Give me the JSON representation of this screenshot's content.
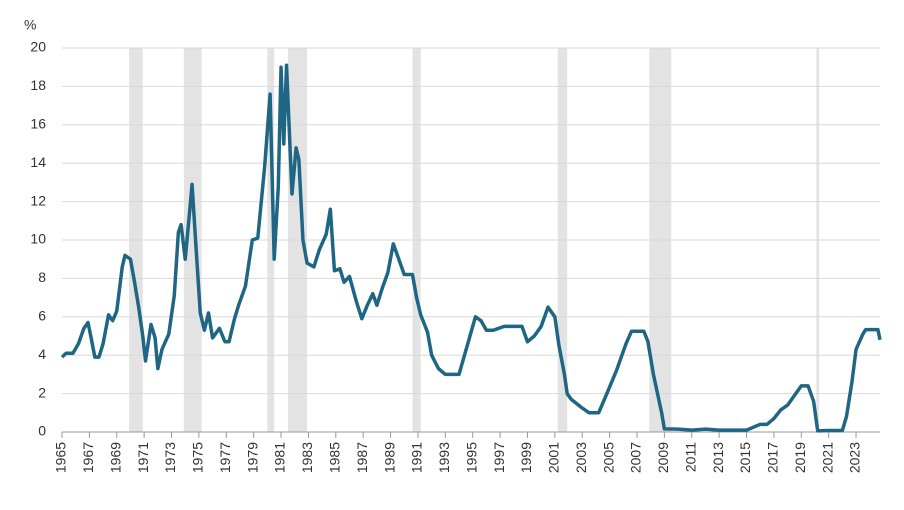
{
  "chart_data": {
    "type": "line",
    "y_label": "%",
    "color": "#1f6685",
    "band_color": "#e3e3e3",
    "grid": true,
    "xlim": [
      1965,
      2024.75
    ],
    "ylim": [
      0,
      20
    ],
    "yticks": [
      0,
      2,
      4,
      6,
      8,
      10,
      12,
      14,
      16,
      18,
      20
    ],
    "xticks": [
      1965,
      1967,
      1969,
      1971,
      1973,
      1975,
      1977,
      1979,
      1981,
      1983,
      1985,
      1987,
      1989,
      1991,
      1993,
      1995,
      1997,
      1999,
      2001,
      2003,
      2005,
      2007,
      2009,
      2011,
      2013,
      2015,
      2017,
      2019,
      2021,
      2023
    ],
    "recessions": [
      [
        1969.9,
        1970.9
      ],
      [
        1973.9,
        1975.2
      ],
      [
        1980.0,
        1980.5
      ],
      [
        1981.5,
        1982.9
      ],
      [
        1990.6,
        1991.2
      ],
      [
        2001.2,
        2001.9
      ],
      [
        2007.9,
        2009.5
      ],
      [
        2020.1,
        2020.3
      ]
    ],
    "x": [
      1965.0,
      1965.3,
      1965.8,
      1966.2,
      1966.6,
      1966.9,
      1967.1,
      1967.4,
      1967.7,
      1968.0,
      1968.4,
      1968.7,
      1969.0,
      1969.4,
      1969.6,
      1970.0,
      1970.3,
      1970.6,
      1970.9,
      1971.1,
      1971.5,
      1971.8,
      1972.0,
      1972.3,
      1972.8,
      1973.2,
      1973.5,
      1973.7,
      1974.0,
      1974.3,
      1974.5,
      1974.8,
      1975.1,
      1975.4,
      1975.7,
      1976.0,
      1976.5,
      1976.9,
      1977.2,
      1977.6,
      1977.9,
      1978.4,
      1978.9,
      1979.3,
      1979.8,
      1980.2,
      1980.5,
      1980.8,
      1981.0,
      1981.2,
      1981.4,
      1981.8,
      1982.1,
      1982.3,
      1982.6,
      1982.9,
      1983.4,
      1983.8,
      1984.3,
      1984.6,
      1984.9,
      1985.3,
      1985.6,
      1986.0,
      1986.5,
      1986.9,
      1987.3,
      1987.7,
      1988.0,
      1988.4,
      1988.8,
      1989.2,
      1989.6,
      1990.0,
      1990.6,
      1990.9,
      1991.2,
      1991.7,
      1992.0,
      1992.5,
      1993.0,
      1993.6,
      1994.0,
      1994.4,
      1994.8,
      1995.2,
      1995.6,
      1996.0,
      1996.5,
      1997.3,
      1998.0,
      1998.6,
      1999.0,
      1999.5,
      2000.0,
      2000.5,
      2001.0,
      2001.3,
      2001.7,
      2001.9,
      2002.2,
      2002.9,
      2003.5,
      2004.2,
      2004.8,
      2005.5,
      2006.2,
      2006.6,
      2007.5,
      2007.8,
      2008.2,
      2008.5,
      2008.8,
      2009.0,
      2010.0,
      2011.0,
      2012.0,
      2013.0,
      2014.0,
      2015.0,
      2016.0,
      2016.5,
      2017.0,
      2017.5,
      2018.0,
      2018.5,
      2019.0,
      2019.5,
      2019.9,
      2020.2,
      2021.0,
      2022.0,
      2022.3,
      2022.7,
      2023.0,
      2023.5,
      2023.7,
      2024.6,
      2024.75
    ],
    "values": [
      3.9,
      4.1,
      4.1,
      4.6,
      5.4,
      5.7,
      5.0,
      3.9,
      3.9,
      4.6,
      6.1,
      5.8,
      6.3,
      8.6,
      9.2,
      9.0,
      7.8,
      6.5,
      5.0,
      3.7,
      5.6,
      4.9,
      3.3,
      4.3,
      5.1,
      7.1,
      10.4,
      10.8,
      9.0,
      11.3,
      12.9,
      9.5,
      6.2,
      5.3,
      6.2,
      4.9,
      5.4,
      4.7,
      4.7,
      5.9,
      6.6,
      7.6,
      10.0,
      10.1,
      13.8,
      17.6,
      9.0,
      12.8,
      19.0,
      15.0,
      19.1,
      12.4,
      14.8,
      14.2,
      10.0,
      8.8,
      8.6,
      9.5,
      10.3,
      11.6,
      8.4,
      8.5,
      7.8,
      8.1,
      6.8,
      5.9,
      6.6,
      7.2,
      6.6,
      7.5,
      8.3,
      9.8,
      9.0,
      8.2,
      8.2,
      7.0,
      6.1,
      5.2,
      4.0,
      3.3,
      3.0,
      3.0,
      3.0,
      4.0,
      5.0,
      6.0,
      5.8,
      5.3,
      5.3,
      5.5,
      5.5,
      5.5,
      4.7,
      5.0,
      5.5,
      6.5,
      6.0,
      4.5,
      3.0,
      2.0,
      1.7,
      1.3,
      1.0,
      1.0,
      2.0,
      3.2,
      4.6,
      5.25,
      5.25,
      4.7,
      3.0,
      2.0,
      1.0,
      0.16,
      0.15,
      0.1,
      0.15,
      0.1,
      0.1,
      0.1,
      0.4,
      0.4,
      0.7,
      1.15,
      1.4,
      1.9,
      2.4,
      2.4,
      1.6,
      0.06,
      0.08,
      0.08,
      0.8,
      2.6,
      4.3,
      5.1,
      5.33,
      5.33,
      4.8
    ]
  }
}
